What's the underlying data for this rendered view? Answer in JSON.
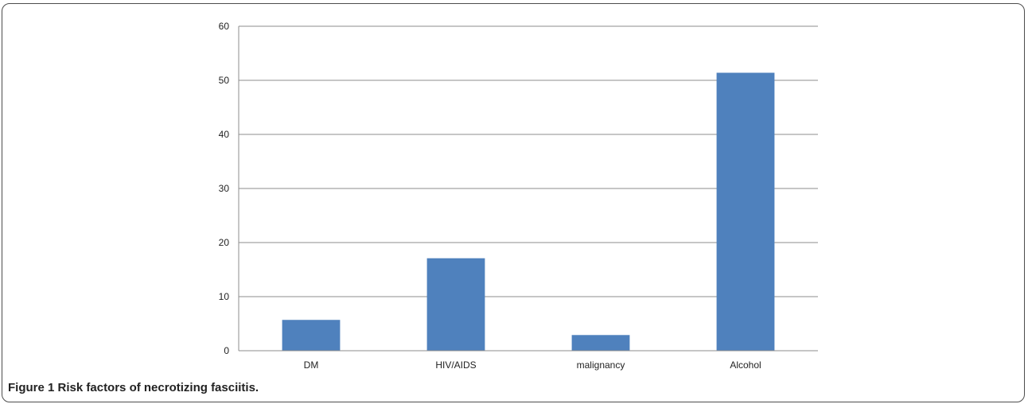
{
  "figure": {
    "label": "Figure 1",
    "text": "Risk factors of necrotizing fasciitis."
  },
  "colors": {
    "bar": "#4f81bd",
    "grid": "#8c8c8c",
    "axis": "#8c8c8c",
    "text": "#222222"
  },
  "chart_data": {
    "type": "bar",
    "categories": [
      "DM",
      "HIV/AIDS",
      "malignancy",
      "Alcohol"
    ],
    "values": [
      5.7,
      17.1,
      2.9,
      51.4
    ],
    "ylim": [
      0,
      60
    ],
    "yticks": [
      0,
      10,
      20,
      30,
      40,
      50,
      60
    ],
    "grid": true,
    "legend": "none"
  }
}
